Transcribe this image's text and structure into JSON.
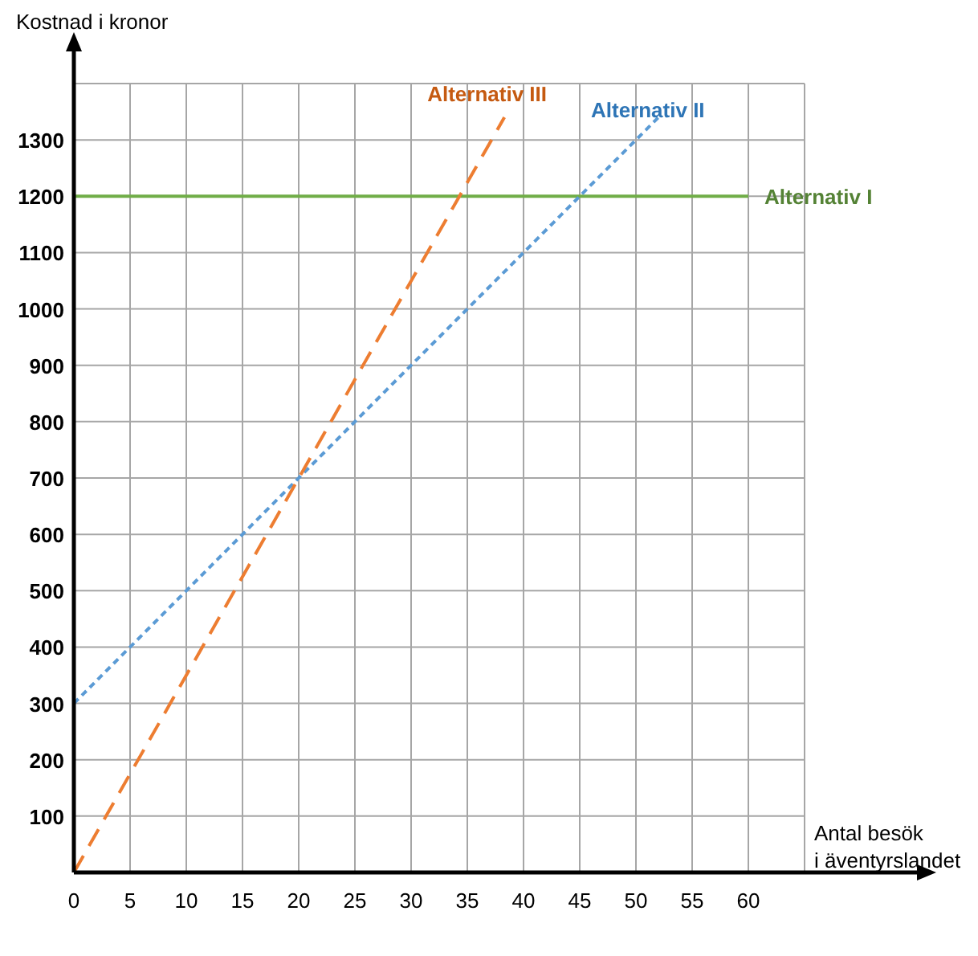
{
  "chart_data": {
    "type": "line",
    "xlabel": "Antal besök\ni äventyrslandet",
    "ylabel": "Kostnad i kronor",
    "xlim": [
      0,
      65
    ],
    "ylim": [
      0,
      1400
    ],
    "xticks": [
      0,
      5,
      10,
      15,
      20,
      25,
      30,
      35,
      40,
      45,
      50,
      55,
      60,
      {
        "value": 65,
        "label": null
      }
    ],
    "yticks": [
      {
        "value": 0,
        "label": null
      },
      100,
      200,
      300,
      400,
      500,
      600,
      700,
      800,
      900,
      1000,
      1100,
      1200,
      1300,
      {
        "value": 1400,
        "label": null
      }
    ],
    "grid": true,
    "marker": "none",
    "series": [
      {
        "name": "Alternativ I",
        "color": "#70ad47",
        "line_style": "solid",
        "x": [
          0,
          60
        ],
        "values": [
          1200,
          1200
        ]
      },
      {
        "name": "Alternativ II",
        "color": "#5b9bd5",
        "line_style": "dotted",
        "x": [
          0,
          52
        ],
        "values": [
          300,
          1340
        ]
      },
      {
        "name": "Alternativ III",
        "color": "#ed7d31",
        "line_style": "dashed",
        "x": [
          0,
          38.3
        ],
        "values": [
          0,
          1340
        ]
      }
    ]
  }
}
